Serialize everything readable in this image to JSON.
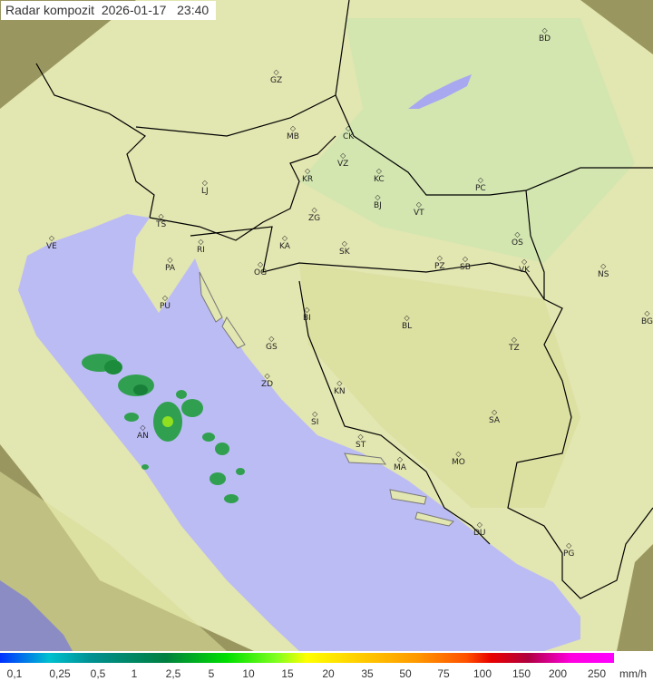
{
  "title": {
    "label": "Radar kompozit",
    "date": "2026-01-17",
    "time": "23:40"
  },
  "colors": {
    "sea": "#bcbcf4",
    "land": "#e6dfa0",
    "coverage_tint": "#d8efc0",
    "outside": "#8a8a50",
    "border": "#000000",
    "rain_light": "#30a050",
    "rain_heavy": "#90e020"
  },
  "cities": [
    "GZ",
    "BD",
    "MB",
    "CK",
    "VZ",
    "KR",
    "KC",
    "LJ",
    "PC",
    "ZG",
    "BJ",
    "VT",
    "TS",
    "VE",
    "RI",
    "KA",
    "SK",
    "OS",
    "PA",
    "OG",
    "PZ",
    "SB",
    "VK",
    "NS",
    "PU",
    "BI",
    "BL",
    "BG",
    "GS",
    "TZ",
    "ZD",
    "KN",
    "SA",
    "SI",
    "AN",
    "ST",
    "MO",
    "MA",
    "DU",
    "PG"
  ],
  "legend": {
    "labels": [
      "0,1",
      "0,25",
      "0,5",
      "1",
      "2,5",
      "5",
      "10",
      "15",
      "20",
      "35",
      "50",
      "75",
      "100",
      "150",
      "200",
      "250"
    ],
    "unit": "mm/h"
  }
}
